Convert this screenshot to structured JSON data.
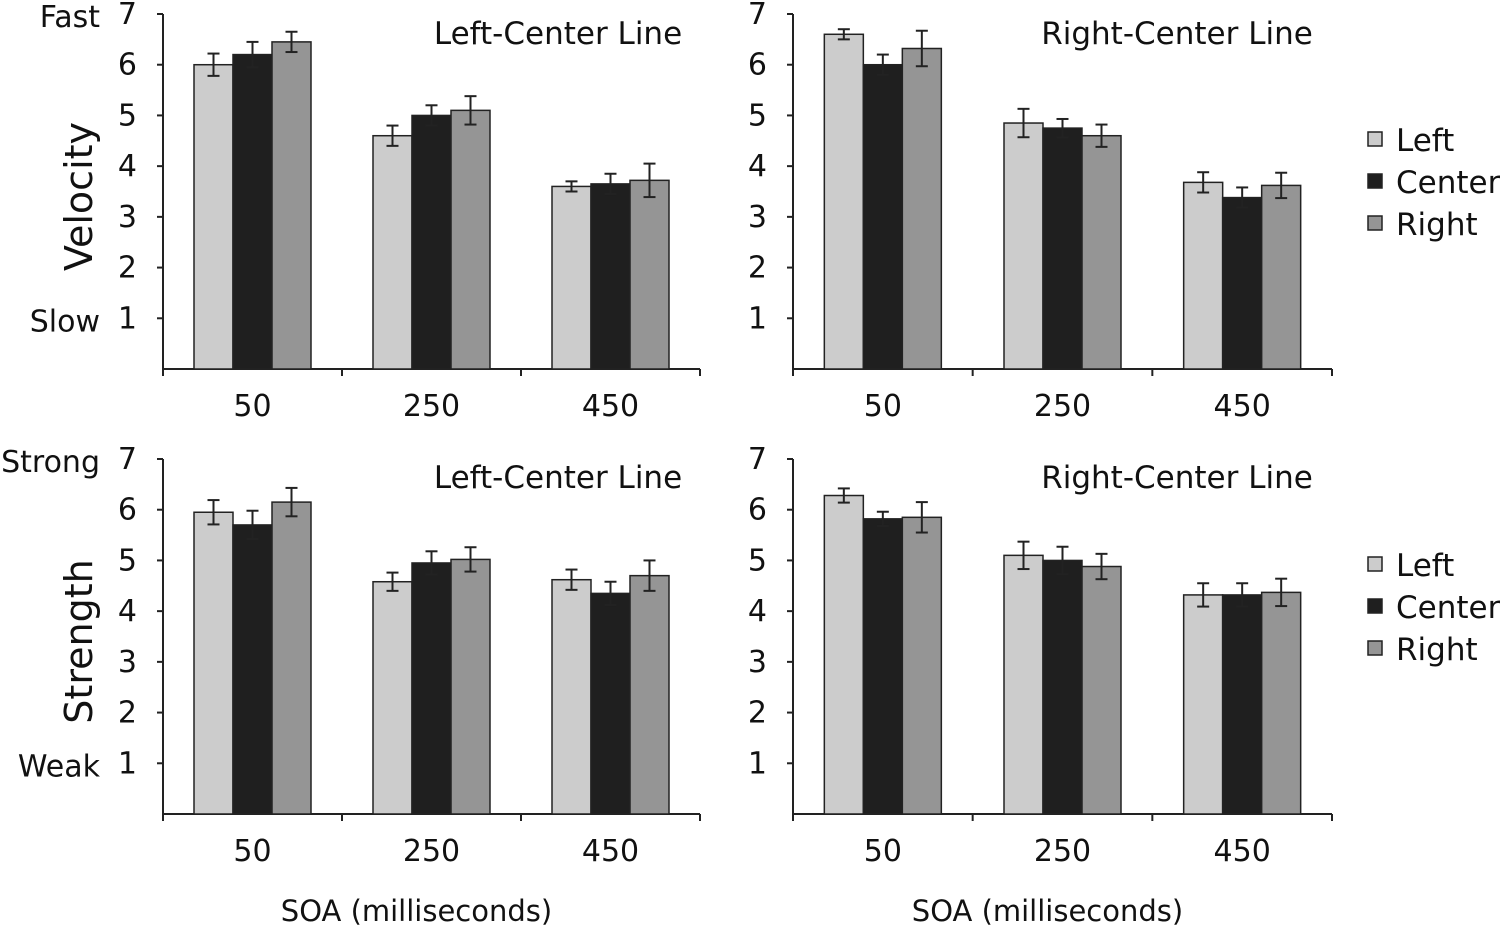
{
  "colors": {
    "Left": "#cccccc",
    "Center": "#1f1f1f",
    "Right": "#959595"
  },
  "chart_data": [
    {
      "id": "top-left",
      "type": "bar",
      "title": "Left-Center Line",
      "ylabel": "Velocity",
      "ylabel_high": "Fast",
      "ylabel_low": "Slow",
      "xlabel": "",
      "categories": [
        "50",
        "250",
        "450"
      ],
      "ylim": [
        0,
        7
      ],
      "yticks": [
        "1",
        "2",
        "3",
        "4",
        "5",
        "6",
        "7"
      ],
      "series": [
        {
          "name": "Left",
          "values": [
            6.0,
            4.6,
            3.6
          ],
          "errors": [
            0.22,
            0.2,
            0.1
          ]
        },
        {
          "name": "Center",
          "values": [
            6.2,
            5.0,
            3.65
          ],
          "errors": [
            0.25,
            0.2,
            0.2
          ]
        },
        {
          "name": "Right",
          "values": [
            6.45,
            5.1,
            3.72
          ],
          "errors": [
            0.2,
            0.28,
            0.33
          ]
        }
      ]
    },
    {
      "id": "top-right",
      "type": "bar",
      "title": "Right-Center Line",
      "ylabel": "",
      "xlabel": "",
      "categories": [
        "50",
        "250",
        "450"
      ],
      "ylim": [
        0,
        7
      ],
      "yticks": [
        "1",
        "2",
        "3",
        "4",
        "5",
        "6",
        "7"
      ],
      "legend": [
        "Left",
        "Center",
        "Right"
      ],
      "series": [
        {
          "name": "Left",
          "values": [
            6.6,
            4.85,
            3.68
          ],
          "errors": [
            0.1,
            0.28,
            0.2
          ]
        },
        {
          "name": "Center",
          "values": [
            6.0,
            4.75,
            3.38
          ],
          "errors": [
            0.2,
            0.18,
            0.2
          ]
        },
        {
          "name": "Right",
          "values": [
            6.32,
            4.6,
            3.62
          ],
          "errors": [
            0.35,
            0.22,
            0.25
          ]
        }
      ]
    },
    {
      "id": "bottom-left",
      "type": "bar",
      "title": "Left-Center Line",
      "ylabel": "Strength",
      "ylabel_high": "Strong",
      "ylabel_low": "Weak",
      "xlabel": "SOA (milliseconds)",
      "categories": [
        "50",
        "250",
        "450"
      ],
      "ylim": [
        0,
        7
      ],
      "yticks": [
        "1",
        "2",
        "3",
        "4",
        "5",
        "6",
        "7"
      ],
      "series": [
        {
          "name": "Left",
          "values": [
            5.95,
            4.58,
            4.62
          ],
          "errors": [
            0.24,
            0.18,
            0.2
          ]
        },
        {
          "name": "Center",
          "values": [
            5.7,
            4.95,
            4.35
          ],
          "errors": [
            0.28,
            0.23,
            0.23
          ]
        },
        {
          "name": "Right",
          "values": [
            6.15,
            5.02,
            4.7
          ],
          "errors": [
            0.28,
            0.24,
            0.3
          ]
        }
      ]
    },
    {
      "id": "bottom-right",
      "type": "bar",
      "title": "Right-Center Line",
      "ylabel": "",
      "xlabel": "SOA (milliseconds)",
      "categories": [
        "50",
        "250",
        "450"
      ],
      "ylim": [
        0,
        7
      ],
      "yticks": [
        "1",
        "2",
        "3",
        "4",
        "5",
        "6",
        "7"
      ],
      "legend": [
        "Left",
        "Center",
        "Right"
      ],
      "series": [
        {
          "name": "Left",
          "values": [
            6.28,
            5.1,
            4.32
          ],
          "errors": [
            0.14,
            0.27,
            0.23
          ]
        },
        {
          "name": "Center",
          "values": [
            5.82,
            5.0,
            4.32
          ],
          "errors": [
            0.14,
            0.27,
            0.23
          ]
        },
        {
          "name": "Right",
          "values": [
            5.85,
            4.88,
            4.37
          ],
          "errors": [
            0.3,
            0.25,
            0.27
          ]
        }
      ]
    }
  ]
}
